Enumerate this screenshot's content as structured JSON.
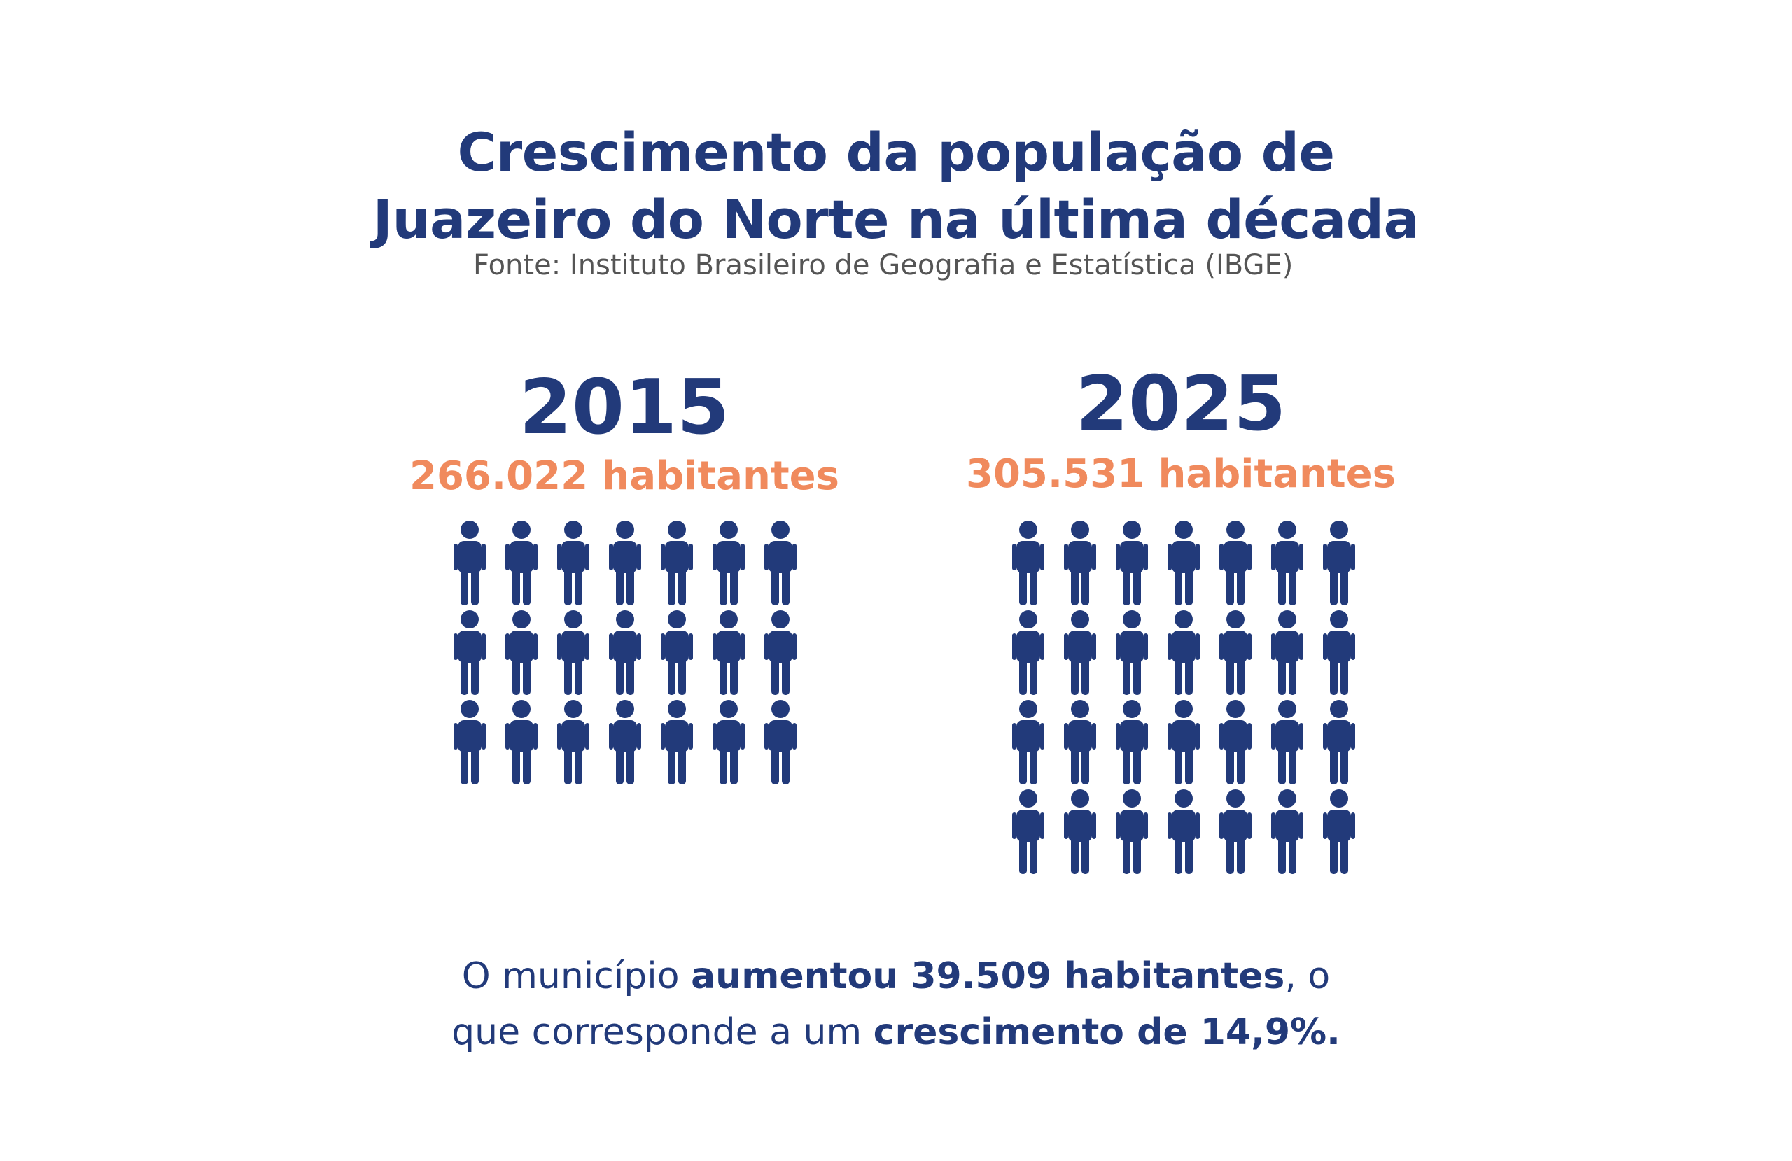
{
  "title_line1": "Crescimento da população de",
  "title_line2": "Juazeiro do Norte na última década",
  "source": "Fonte: Instituto Brasileiro de Geografia e Estatística (IBGE)",
  "colors": {
    "primary": "#223a7a",
    "accent": "#f08a5d",
    "source": "#555555"
  },
  "chart_data": {
    "type": "pictogram",
    "icon": "person-icon",
    "categories": [
      "2015",
      "2025"
    ],
    "values": [
      266022,
      305531
    ],
    "value_labels": [
      "266.022 habitantes",
      "305.531 habitantes"
    ],
    "icon_counts": [
      21,
      28
    ],
    "icons_per_row": 7
  },
  "summary": {
    "line1_pre": "O município ",
    "line1_bold": "aumentou 39.509 habitantes",
    "line1_post": ", o",
    "line2_pre": "que corresponde a um ",
    "line2_bold": "crescimento de 14,9%."
  }
}
